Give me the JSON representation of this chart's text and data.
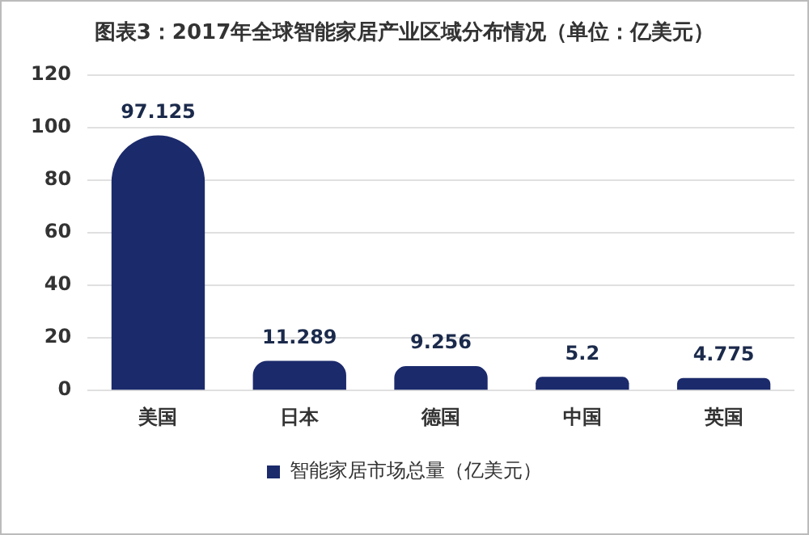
{
  "chart_data": {
    "type": "bar",
    "title": "图表3：2017年全球智能家居产业区域分布情况（单位：亿美元）",
    "categories": [
      "美国",
      "日本",
      "德国",
      "中国",
      "英国"
    ],
    "series": [
      {
        "name": "智能家居市场总量（亿美元）",
        "color": "#1b2a6b",
        "values": [
          97.125,
          11.289,
          9.256,
          5.2,
          4.775
        ]
      }
    ],
    "ylim": [
      0,
      120
    ],
    "yticks": [
      0,
      20,
      40,
      60,
      80,
      100,
      120
    ],
    "grid": "y",
    "legend": "bottom",
    "data_labels": true
  }
}
